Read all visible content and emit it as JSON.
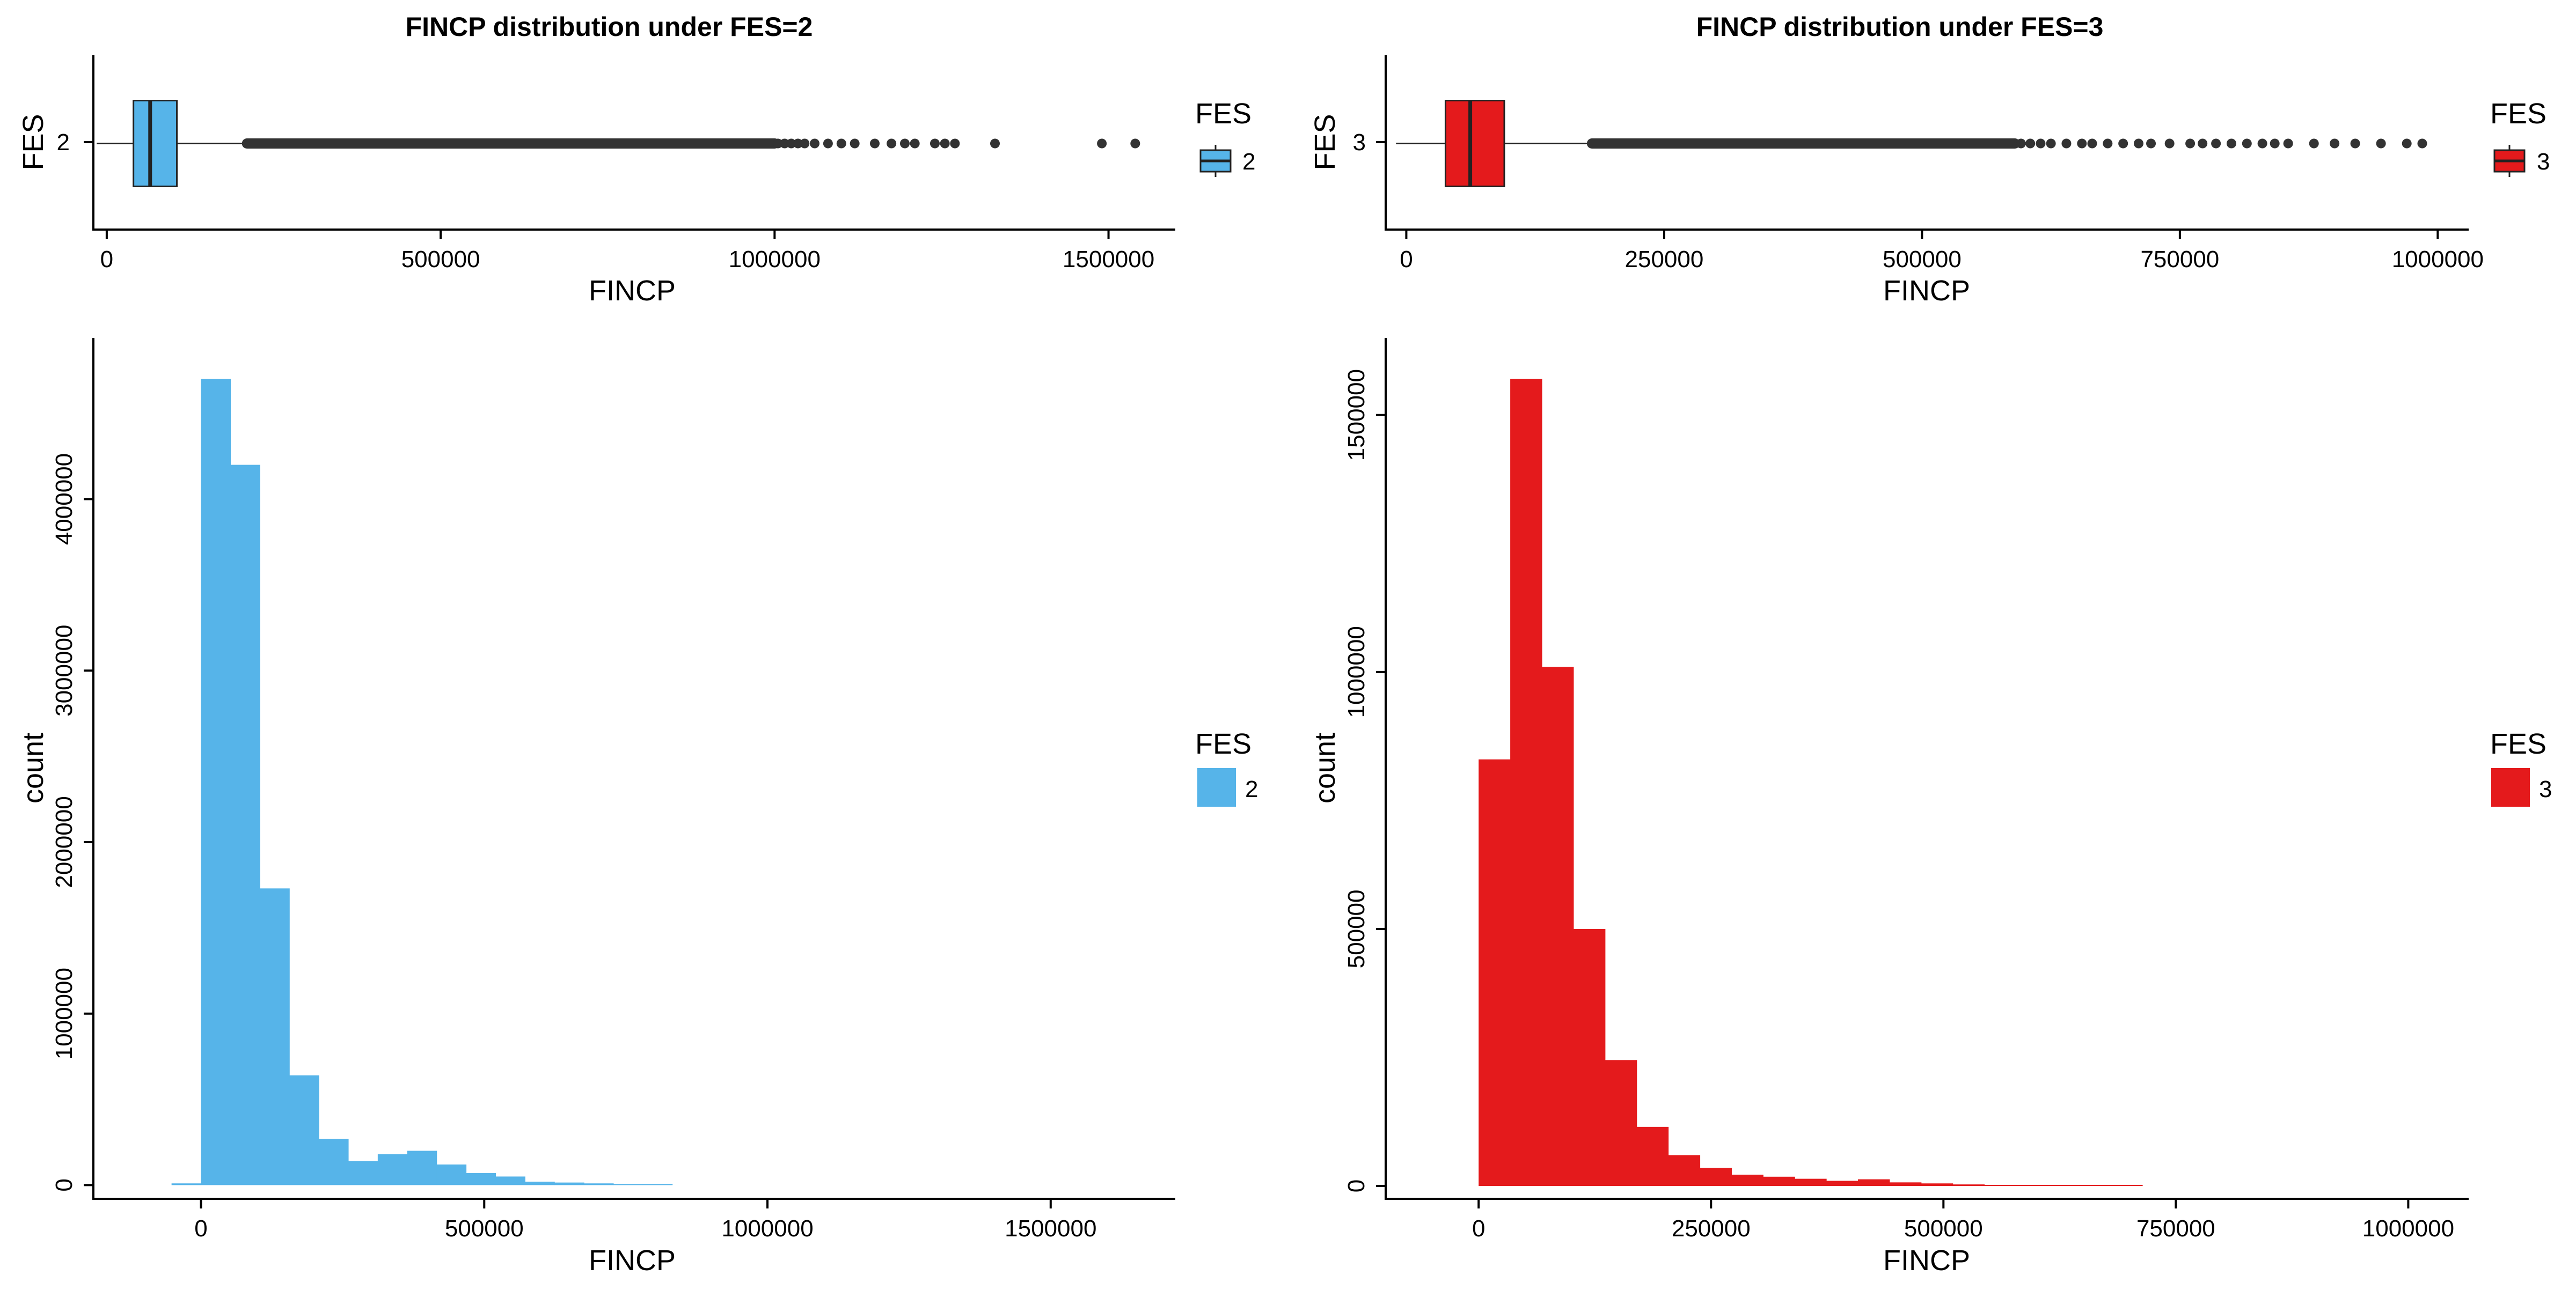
{
  "colors": {
    "fes2": "#56B4E9",
    "fes3": "#E41A1C",
    "outline": "#222222",
    "axis": "#000000"
  },
  "panels": {
    "box_fes2": {
      "chart_data": {
        "type": "boxplot",
        "title": "FINCP distribution under FES=2",
        "xlabel": "FINCP",
        "ylabel": "FES",
        "category": "2",
        "xlim": [
          -20000,
          1600000
        ],
        "xticks": [
          0,
          500000,
          1000000,
          1500000
        ],
        "xtick_labels": [
          "0",
          "500000",
          "1000000",
          "1500000"
        ],
        "whisker_low": -15000,
        "q1": 40000,
        "median": 65000,
        "q3": 105000,
        "whisker_high": 210000,
        "outlier_range": [
          210000,
          1000000
        ],
        "outliers": [
          1005000,
          1015000,
          1025000,
          1035000,
          1045000,
          1060000,
          1080000,
          1100000,
          1120000,
          1150000,
          1175000,
          1195000,
          1210000,
          1240000,
          1255000,
          1270000,
          1330000,
          1490000,
          1540000
        ],
        "legend_title": "FES",
        "legend_label": "2"
      }
    },
    "box_fes3": {
      "chart_data": {
        "type": "boxplot",
        "title": "FINCP distribution under FES=3",
        "xlabel": "FINCP",
        "ylabel": "FES",
        "category": "3",
        "xlim": [
          -20000,
          1030000
        ],
        "xticks": [
          0,
          250000,
          500000,
          750000,
          1000000
        ],
        "xtick_labels": [
          "0",
          "250000",
          "500000",
          "750000",
          "1000000"
        ],
        "whisker_low": -10000,
        "q1": 38000,
        "median": 62000,
        "q3": 95000,
        "whisker_high": 180000,
        "outlier_range": [
          180000,
          590000
        ],
        "outliers": [
          596000,
          605000,
          615000,
          625000,
          640000,
          655000,
          665000,
          680000,
          695000,
          710000,
          722000,
          740000,
          760000,
          772000,
          785000,
          800000,
          815000,
          830000,
          842000,
          855000,
          880000,
          900000,
          920000,
          945000,
          970000,
          985000
        ],
        "legend_title": "FES",
        "legend_label": "3"
      }
    },
    "hist_fes2": {
      "chart_data": {
        "type": "histogram",
        "xlabel": "FINCP",
        "ylabel": "count",
        "bin_width": 52000,
        "bin_start": -52000,
        "counts": [
          10000,
          4700000,
          4200000,
          1730000,
          640000,
          270000,
          140000,
          180000,
          200000,
          120000,
          70000,
          50000,
          20000,
          15000,
          10000,
          6000,
          3000
        ],
        "xlim": [
          -190000,
          1720000
        ],
        "ylim": [
          -80000,
          4940000
        ],
        "xticks": [
          0,
          500000,
          1000000,
          1500000
        ],
        "xtick_labels": [
          "0",
          "500000",
          "1000000",
          "1500000"
        ],
        "yticks": [
          0,
          1000000,
          2000000,
          3000000,
          4000000
        ],
        "ytick_labels": [
          "0",
          "1000000",
          "2000000",
          "3000000",
          "4000000"
        ],
        "legend_title": "FES",
        "legend_label": "2"
      }
    },
    "hist_fes3": {
      "chart_data": {
        "type": "histogram",
        "xlabel": "FINCP",
        "ylabel": "count",
        "bin_width": 34000,
        "bin_start": 0,
        "counts": [
          830000,
          1570000,
          1010000,
          500000,
          245000,
          115000,
          60000,
          35000,
          22000,
          18000,
          14000,
          10000,
          13000,
          7000,
          5000,
          3000,
          2000,
          1000,
          0,
          500,
          400
        ],
        "xlim": [
          -100000,
          1065000
        ],
        "ylim": [
          -25000,
          1650000
        ],
        "xticks": [
          0,
          250000,
          500000,
          750000,
          1000000
        ],
        "xtick_labels": [
          "0",
          "250000",
          "500000",
          "750000",
          "1000000"
        ],
        "yticks": [
          0,
          500000,
          1000000,
          1500000
        ],
        "ytick_labels": [
          "0",
          "500000",
          "1000000",
          "1500000"
        ],
        "legend_title": "FES",
        "legend_label": "3"
      }
    }
  }
}
